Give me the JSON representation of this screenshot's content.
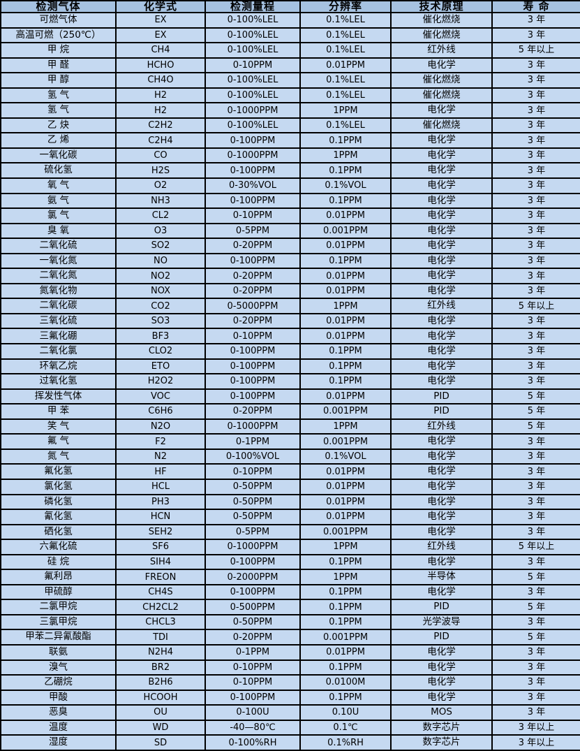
{
  "colors": {
    "header_bg": "#a6c2e1",
    "row_bg": "#c5d9f1",
    "border": "#000000",
    "text": "#000000"
  },
  "table": {
    "columns": [
      {
        "key": "gas",
        "label": "检测气体"
      },
      {
        "key": "formula",
        "label": "化学式"
      },
      {
        "key": "range",
        "label": "检测量程"
      },
      {
        "key": "resolution",
        "label": "分辨率"
      },
      {
        "key": "principle",
        "label": "技术原理"
      },
      {
        "key": "lifespan",
        "label": "寿  命"
      }
    ],
    "rows": [
      [
        "可燃气体",
        "EX",
        "0-100%LEL",
        "0.1%LEL",
        "催化燃烧",
        "3 年"
      ],
      [
        "高温可燃（250℃）",
        "EX",
        "0-100%LEL",
        "0.1%LEL",
        "催化燃烧",
        "3 年"
      ],
      [
        "甲  烷",
        "CH4",
        "0-100%LEL",
        "0.1%LEL",
        "红外线",
        "5 年以上"
      ],
      [
        "甲  醛",
        "HCHO",
        "0-10PPM",
        "0.01PPM",
        "电化学",
        "3 年"
      ],
      [
        "甲  醇",
        "CH4O",
        "0-100%LEL",
        "0.1%LEL",
        "催化燃烧",
        "3 年"
      ],
      [
        "氢  气",
        "H2",
        "0-100%LEL",
        "0.1%LEL",
        "催化燃烧",
        "3 年"
      ],
      [
        "氢  气",
        "H2",
        "0-1000PPM",
        "1PPM",
        "电化学",
        "3 年"
      ],
      [
        "乙  炔",
        "C2H2",
        "0-100%LEL",
        "0.1%LEL",
        "催化燃烧",
        "3 年"
      ],
      [
        "乙  烯",
        "C2H4",
        "0-100PPM",
        "0.1PPM",
        "电化学",
        "3 年"
      ],
      [
        "一氧化碳",
        "CO",
        "0-1000PPM",
        "1PPM",
        "电化学",
        "3 年"
      ],
      [
        "硫化氢",
        "H2S",
        "0-100PPM",
        "0.1PPM",
        "电化学",
        "3 年"
      ],
      [
        "氧  气",
        "O2",
        "0-30%VOL",
        "0.1%VOL",
        "电化学",
        "3 年"
      ],
      [
        "氨  气",
        "NH3",
        "0-100PPM",
        "0.1PPM",
        "电化学",
        "3 年"
      ],
      [
        "氯  气",
        "CL2",
        "0-10PPM",
        "0.01PPM",
        "电化学",
        "3 年"
      ],
      [
        "臭  氧",
        "O3",
        "0-5PPM",
        "0.001PPM",
        "电化学",
        "3 年"
      ],
      [
        "二氧化硫",
        "SO2",
        "0-20PPM",
        "0.01PPM",
        "电化学",
        "3 年"
      ],
      [
        "一氧化氮",
        "NO",
        "0-100PPM",
        "0.1PPM",
        "电化学",
        "3 年"
      ],
      [
        "二氧化氮",
        "NO2",
        "0-20PPM",
        "0.01PPM",
        "电化学",
        "3 年"
      ],
      [
        "氮氧化物",
        "NOX",
        "0-20PPM",
        "0.01PPM",
        "电化学",
        "3 年"
      ],
      [
        "二氧化碳",
        "CO2",
        "0-5000PPM",
        "1PPM",
        "红外线",
        "5 年以上"
      ],
      [
        "三氧化硫",
        "SO3",
        "0-20PPM",
        "0.01PPM",
        "电化学",
        "3 年"
      ],
      [
        "三氟化硼",
        "BF3",
        "0-10PPM",
        "0.01PPM",
        "电化学",
        "3 年"
      ],
      [
        "二氧化氯",
        "CLO2",
        "0-100PPM",
        "0.1PPM",
        "电化学",
        "3 年"
      ],
      [
        "环氧乙烷",
        "ETO",
        "0-100PPM",
        "0.1PPM",
        "电化学",
        "3 年"
      ],
      [
        "过氧化氢",
        "H2O2",
        "0-100PPM",
        "0.1PPM",
        "电化学",
        "3 年"
      ],
      [
        "挥发性气体",
        "VOC",
        "0-100PPM",
        "0.01PPM",
        "PID",
        "5 年"
      ],
      [
        "甲  苯",
        "C6H6",
        "0-20PPM",
        "0.001PPM",
        "PID",
        "5 年"
      ],
      [
        "笑  气",
        "N2O",
        "0-1000PPM",
        "1PPM",
        "红外线",
        "5 年"
      ],
      [
        "氟  气",
        "F2",
        "0-1PPM",
        "0.001PPM",
        "电化学",
        "3 年"
      ],
      [
        "氮  气",
        "N2",
        "0-100%VOL",
        "0.1%VOL",
        "电化学",
        "3 年"
      ],
      [
        "氟化氢",
        "HF",
        "0-10PPM",
        "0.01PPM",
        "电化学",
        "3 年"
      ],
      [
        "氯化氢",
        "HCL",
        "0-50PPM",
        "0.01PPM",
        "电化学",
        "3 年"
      ],
      [
        "磷化氢",
        "PH3",
        "0-50PPM",
        "0.01PPM",
        "电化学",
        "3 年"
      ],
      [
        "氰化氢",
        "HCN",
        "0-50PPM",
        "0.01PPM",
        "电化学",
        "3 年"
      ],
      [
        "硒化氢",
        "SEH2",
        "0-5PPM",
        "0.001PPM",
        "电化学",
        "3 年"
      ],
      [
        "六氟化硫",
        "SF6",
        "0-1000PPM",
        "1PPM",
        "红外线",
        "5 年以上"
      ],
      [
        "硅  烷",
        "SIH4",
        "0-100PPM",
        "0.1PPM",
        "电化学",
        "3 年"
      ],
      [
        "氟利昂",
        "FREON",
        "0-2000PPM",
        "1PPM",
        "半导体",
        "5 年"
      ],
      [
        "甲硫醇",
        "CH4S",
        "0-100PPM",
        "0.1PPM",
        "电化学",
        "3 年"
      ],
      [
        "二氯甲烷",
        "CH2CL2",
        "0-500PPM",
        "0.1PPM",
        "PID",
        "5 年"
      ],
      [
        "三氯甲烷",
        "CHCL3",
        "0-50PPM",
        "0.1PPM",
        "光学波导",
        "3 年"
      ],
      [
        "甲苯二异氰酸酯",
        "TDI",
        "0-20PPM",
        "0.001PPM",
        "PID",
        "5 年"
      ],
      [
        "联氨",
        "N2H4",
        "0-1PPM",
        "0.01PPM",
        "电化学",
        "3 年"
      ],
      [
        "溴气",
        "BR2",
        "0-10PPM",
        "0.1PPM",
        "电化学",
        "3 年"
      ],
      [
        "乙硼烷",
        "B2H6",
        "0-10PPM",
        "0.0100M",
        "电化学",
        "3 年"
      ],
      [
        "甲酸",
        "HCOOH",
        "0-100PPM",
        "0.1PPM",
        "电化学",
        "3 年"
      ],
      [
        "恶臭",
        "OU",
        "0-100U",
        "0.10U",
        "MOS",
        "3 年"
      ],
      [
        "温度",
        "WD",
        "-40—80℃",
        "0.1℃",
        "数字芯片",
        "3 年以上"
      ],
      [
        "湿度",
        "SD",
        "0-100%RH",
        "0.1%RH",
        "数字芯片",
        "3 年以上"
      ]
    ]
  }
}
